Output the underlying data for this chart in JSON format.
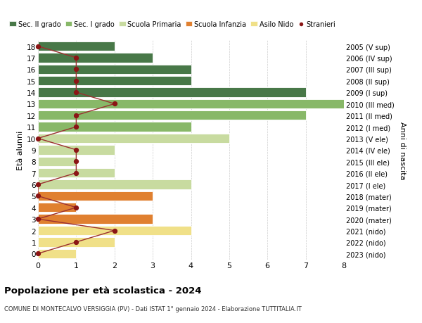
{
  "ages": [
    0,
    1,
    2,
    3,
    4,
    5,
    6,
    7,
    8,
    9,
    10,
    11,
    12,
    13,
    14,
    15,
    16,
    17,
    18
  ],
  "years": [
    "2023 (nido)",
    "2022 (nido)",
    "2021 (nido)",
    "2020 (mater)",
    "2019 (mater)",
    "2018 (mater)",
    "2017 (I ele)",
    "2016 (II ele)",
    "2015 (III ele)",
    "2014 (IV ele)",
    "2013 (V ele)",
    "2012 (I med)",
    "2011 (II med)",
    "2010 (III med)",
    "2009 (I sup)",
    "2008 (II sup)",
    "2007 (III sup)",
    "2006 (IV sup)",
    "2005 (V sup)"
  ],
  "bar_values": [
    1,
    2,
    4,
    3,
    1,
    3,
    4,
    2,
    1,
    2,
    5,
    4,
    7,
    8,
    7,
    4,
    4,
    3,
    2
  ],
  "stranieri": [
    0,
    1,
    2,
    0,
    1,
    0,
    0,
    1,
    1,
    1,
    0,
    1,
    1,
    2,
    1,
    1,
    1,
    1,
    0
  ],
  "bar_colors": {
    "asilo_nido": "#f0e088",
    "scuola_infanzia": "#e08030",
    "scuola_primaria": "#c8dba0",
    "sec_i_grado": "#88b868",
    "sec_ii_grado": "#487848"
  },
  "stranieri_dot_color": "#8b1515",
  "stranieri_line_color": "#9b3030",
  "legend_labels": [
    "Sec. II grado",
    "Sec. I grado",
    "Scuola Primaria",
    "Scuola Infanzia",
    "Asilo Nido",
    "Stranieri"
  ],
  "legend_colors": [
    "#487848",
    "#88b868",
    "#c8dba0",
    "#e08030",
    "#f0e088",
    "#8b1515"
  ],
  "title": "Popolazione per età scolastica - 2024",
  "subtitle": "COMUNE DI MONTECALVO VERSIGGIA (PV) - Dati ISTAT 1° gennaio 2024 - Elaborazione TUTTITALIA.IT",
  "ylabel_left": "Età alunni",
  "ylabel_right": "Anni di nascita",
  "xlim": [
    0,
    8
  ],
  "xticks": [
    0,
    1,
    2,
    3,
    4,
    5,
    6,
    7,
    8
  ],
  "background_color": "#ffffff",
  "grid_color": "#cccccc",
  "bar_height": 0.82
}
